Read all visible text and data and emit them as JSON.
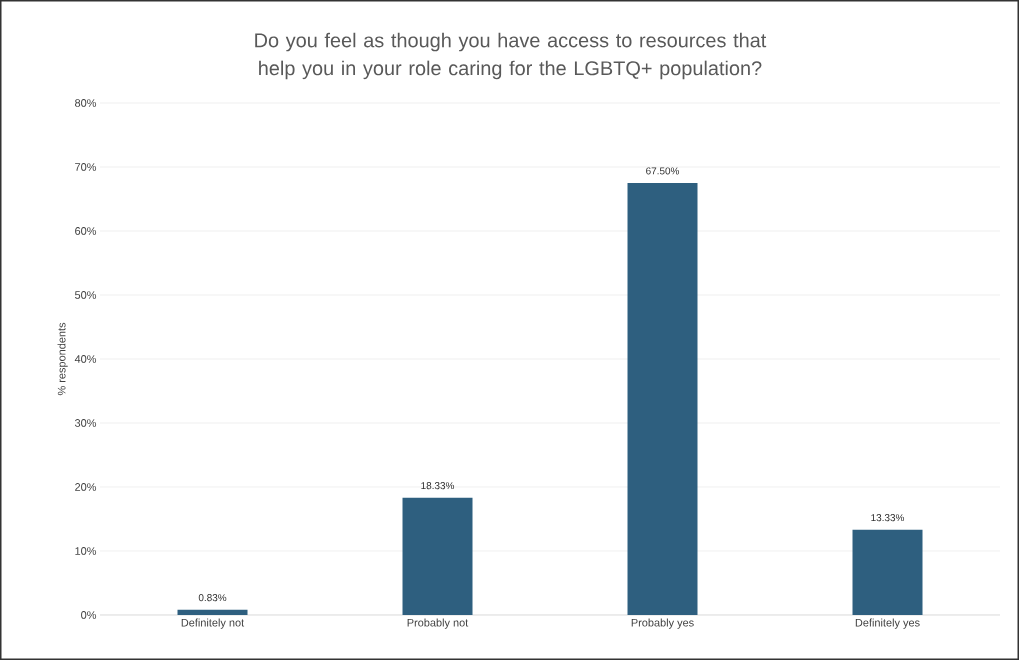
{
  "chart_data": {
    "type": "bar",
    "title": "Do you feel as though you have access to resources that help you in your role caring for the LGBTQ+ population?",
    "ylabel": "% respondents",
    "categories": [
      "Definitely not",
      "Probably not",
      "Probably yes",
      "Definitely yes"
    ],
    "values": [
      0.83,
      18.33,
      67.5,
      13.33
    ],
    "value_labels": [
      "0.83%",
      "18.33%",
      "67.50%",
      "13.33%"
    ],
    "color": "#2e5f7f",
    "ylim": [
      0,
      80
    ],
    "yticks": [
      {
        "value": 0,
        "label": "0%"
      },
      {
        "value": 10,
        "label": "10%"
      },
      {
        "value": 20,
        "label": "20%"
      },
      {
        "value": 30,
        "label": "30%"
      },
      {
        "value": 40,
        "label": "40%"
      },
      {
        "value": 50,
        "label": "50%"
      },
      {
        "value": 60,
        "label": "60%"
      },
      {
        "value": 70,
        "label": "70%"
      },
      {
        "value": 80,
        "label": "80%"
      }
    ],
    "grid": "y"
  }
}
